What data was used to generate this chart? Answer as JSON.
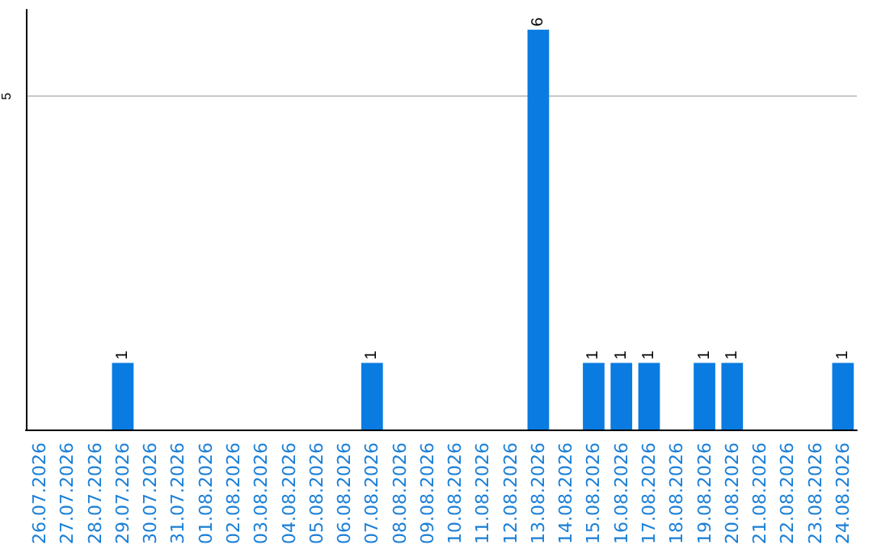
{
  "chart_data": {
    "type": "bar",
    "categories": [
      "26.07.2026",
      "27.07.2026",
      "28.07.2026",
      "29.07.2026",
      "30.07.2026",
      "31.07.2026",
      "01.08.2026",
      "02.08.2026",
      "03.08.2026",
      "04.08.2026",
      "05.08.2026",
      "06.08.2026",
      "07.08.2026",
      "08.08.2026",
      "09.08.2026",
      "10.08.2026",
      "11.08.2026",
      "12.08.2026",
      "13.08.2026",
      "14.08.2026",
      "15.08.2026",
      "16.08.2026",
      "17.08.2026",
      "18.08.2026",
      "19.08.2026",
      "20.08.2026",
      "21.08.2026",
      "22.08.2026",
      "23.08.2026",
      "24.08.2026"
    ],
    "values": [
      0,
      0,
      0,
      1,
      0,
      0,
      0,
      0,
      0,
      0,
      0,
      0,
      1,
      0,
      0,
      0,
      0,
      0,
      6,
      0,
      1,
      1,
      1,
      0,
      1,
      1,
      0,
      0,
      0,
      1
    ],
    "value_labels": [
      null,
      null,
      null,
      "1",
      null,
      null,
      null,
      null,
      null,
      null,
      null,
      null,
      "1",
      null,
      null,
      null,
      null,
      null,
      "6",
      null,
      "1",
      "1",
      "1",
      null,
      "1",
      "1",
      null,
      null,
      null,
      "1"
    ],
    "color": "#0a7be0",
    "ylim": [
      0,
      6.3
    ],
    "yticks": [
      5
    ],
    "grid": "y"
  }
}
